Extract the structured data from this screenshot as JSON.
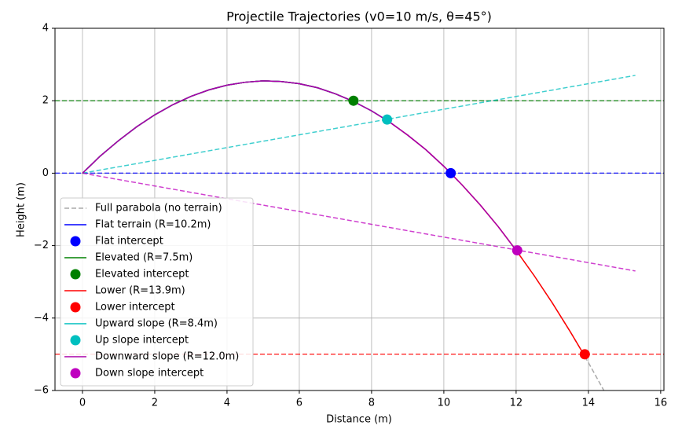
{
  "chart_data": {
    "type": "line",
    "title": "Projectile Trajectories (v0=10 m/s, θ=45°)",
    "xlabel": "Distance (m)",
    "ylabel": "Height (m)",
    "xlim": [
      -0.76,
      16.09
    ],
    "ylim": [
      -6,
      4
    ],
    "xticks": [
      0,
      2,
      4,
      6,
      8,
      10,
      12,
      14,
      16
    ],
    "yticks": [
      {
        "value": -6,
        "label": "−6"
      },
      {
        "value": -4,
        "label": "−4"
      },
      {
        "value": -2,
        "label": "−2"
      },
      0,
      2,
      4
    ],
    "grid": true,
    "legend": "lower left",
    "hlines": [
      {
        "value": 0,
        "color": "#0000ff"
      },
      {
        "value": 2,
        "color": "#008000"
      },
      {
        "value": -5,
        "color": "#ff0000"
      }
    ],
    "terrain": [
      {
        "x": [
          0,
          15.3
        ],
        "values": [
          0,
          2.7
        ],
        "color": "#00bfbf"
      },
      {
        "x": [
          0,
          15.3
        ],
        "values": [
          0,
          -2.7
        ],
        "color": "#bf00bf"
      }
    ],
    "series": [
      {
        "name": "Full parabola (no terrain)",
        "color": "#aaaaaa",
        "dashed": true,
        "x": [
          0,
          0.5,
          1,
          1.5,
          2,
          2.5,
          3,
          3.5,
          4,
          4.5,
          5,
          5.5,
          6,
          6.5,
          7,
          7.5,
          8,
          8.5,
          9,
          9.5,
          10,
          10.5,
          11,
          11.5,
          12,
          12.5,
          13,
          13.5,
          14,
          14.5
        ],
        "values": [
          0,
          0.48,
          0.9,
          1.28,
          1.61,
          1.89,
          2.12,
          2.3,
          2.43,
          2.51,
          2.55,
          2.53,
          2.47,
          2.36,
          2.19,
          1.98,
          1.72,
          1.41,
          1.05,
          0.65,
          0.19,
          -0.32,
          -0.87,
          -1.47,
          -2.13,
          -2.83,
          -3.58,
          -4.38,
          -5.23,
          -6.13
        ]
      },
      {
        "name": "Flat terrain (R=10.2m)",
        "color": "#0000ff",
        "x": [
          0,
          0.5,
          1,
          1.5,
          2,
          2.5,
          3,
          3.5,
          4,
          4.5,
          5,
          5.5,
          6,
          6.5,
          7,
          7.5,
          8,
          8.5,
          9,
          9.5,
          10,
          10.19
        ],
        "values": [
          0,
          0.48,
          0.9,
          1.28,
          1.61,
          1.89,
          2.12,
          2.3,
          2.43,
          2.51,
          2.55,
          2.53,
          2.47,
          2.36,
          2.19,
          1.98,
          1.72,
          1.41,
          1.05,
          0.65,
          0.19,
          0
        ]
      },
      {
        "name": "Flat intercept",
        "color": "#0000ff",
        "marker": true,
        "x": [
          10.19
        ],
        "values": [
          0
        ]
      },
      {
        "name": "Elevated (R=7.5m)",
        "color": "#008000",
        "x": [
          0,
          0.5,
          1,
          1.5,
          2,
          2.5,
          3,
          3.5,
          4,
          4.5,
          5,
          5.5,
          6,
          6.5,
          7,
          7.5
        ],
        "values": [
          0,
          0.48,
          0.9,
          1.28,
          1.61,
          1.89,
          2.12,
          2.3,
          2.43,
          2.51,
          2.55,
          2.53,
          2.47,
          2.36,
          2.19,
          1.98
        ]
      },
      {
        "name": "Elevated intercept",
        "color": "#008000",
        "marker": true,
        "x": [
          7.5
        ],
        "values": [
          2.0
        ]
      },
      {
        "name": "Lower (R=13.9m)",
        "color": "#ff0000",
        "x": [
          0,
          0.5,
          1,
          1.5,
          2,
          2.5,
          3,
          3.5,
          4,
          4.5,
          5,
          5.5,
          6,
          6.5,
          7,
          7.5,
          8,
          8.5,
          9,
          9.5,
          10,
          10.5,
          11,
          11.5,
          12,
          12.5,
          13,
          13.5,
          13.9
        ],
        "values": [
          0,
          0.48,
          0.9,
          1.28,
          1.61,
          1.89,
          2.12,
          2.3,
          2.43,
          2.51,
          2.55,
          2.53,
          2.47,
          2.36,
          2.19,
          1.98,
          1.72,
          1.41,
          1.05,
          0.65,
          0.19,
          -0.32,
          -0.87,
          -1.47,
          -2.13,
          -2.83,
          -3.58,
          -4.38,
          -5.05
        ]
      },
      {
        "name": "Lower intercept",
        "color": "#ff0000",
        "marker": true,
        "x": [
          13.9
        ],
        "values": [
          -5.0
        ]
      },
      {
        "name": "Upward slope (R=8.4m)",
        "color": "#00bfbf",
        "x": [
          0,
          0.5,
          1,
          1.5,
          2,
          2.5,
          3,
          3.5,
          4,
          4.5,
          5,
          5.5,
          6,
          6.5,
          7,
          7.5,
          8,
          8.43
        ],
        "values": [
          0,
          0.48,
          0.9,
          1.28,
          1.61,
          1.89,
          2.12,
          2.3,
          2.43,
          2.51,
          2.55,
          2.53,
          2.47,
          2.36,
          2.19,
          1.98,
          1.72,
          1.46
        ]
      },
      {
        "name": "Up slope intercept",
        "color": "#00bfbf",
        "marker": true,
        "x": [
          8.43
        ],
        "values": [
          1.48
        ]
      },
      {
        "name": "Downward slope (R=12.0m)",
        "color": "#aa00aa",
        "x": [
          0,
          0.5,
          1,
          1.5,
          2,
          2.5,
          3,
          3.5,
          4,
          4.5,
          5,
          5.5,
          6,
          6.5,
          7,
          7.5,
          8,
          8.5,
          9,
          9.5,
          10,
          10.5,
          11,
          11.5,
          12
        ],
        "values": [
          0,
          0.48,
          0.9,
          1.28,
          1.61,
          1.89,
          2.12,
          2.3,
          2.43,
          2.51,
          2.55,
          2.53,
          2.47,
          2.36,
          2.19,
          1.98,
          1.72,
          1.41,
          1.05,
          0.65,
          0.19,
          -0.32,
          -0.87,
          -1.47,
          -2.13
        ]
      },
      {
        "name": "Down slope intercept",
        "color": "#bf00bf",
        "marker": true,
        "x": [
          12.03
        ],
        "values": [
          -2.13
        ]
      }
    ]
  }
}
